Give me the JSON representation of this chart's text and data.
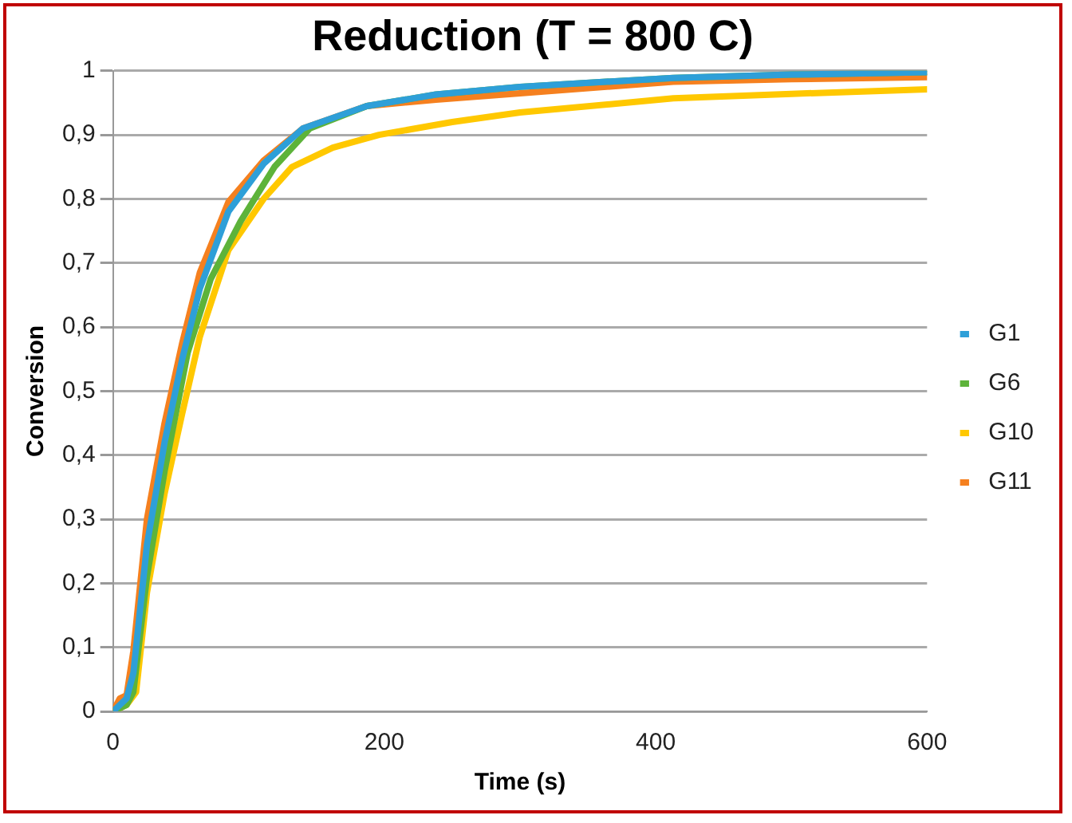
{
  "chart_data": {
    "type": "line",
    "title": "Reduction (T = 800 C)",
    "xlabel": "Time (s)",
    "ylabel": "Conversion",
    "xlim": [
      0,
      600
    ],
    "xticks": [
      0,
      200,
      400,
      600
    ],
    "ylim": [
      0,
      1
    ],
    "yticks": [
      0,
      {
        "value": 0.1,
        "label": "0,1"
      },
      {
        "value": 0.2,
        "label": "0,2"
      },
      {
        "value": 0.3,
        "label": "0,3"
      },
      {
        "value": 0.4,
        "label": "0,4"
      },
      {
        "value": 0.5,
        "label": "0,5"
      },
      {
        "value": 0.6,
        "label": "0,6"
      },
      {
        "value": 0.7,
        "label": "0,7"
      },
      {
        "value": 0.8,
        "label": "0,8"
      },
      {
        "value": 0.9,
        "label": "0,9"
      },
      1
    ],
    "grid": "y",
    "legend": "right",
    "marker": "none",
    "line_style": "solid",
    "series": [
      {
        "name": "G1",
        "color": "#2e9fd8",
        "x": [
          0,
          10,
          15,
          25,
          38,
          51,
          64,
          85,
          111,
          140,
          187,
          238,
          300,
          413,
          500,
          600
        ],
        "values": [
          0,
          0.02,
          0.06,
          0.26,
          0.42,
          0.55,
          0.66,
          0.78,
          0.855,
          0.91,
          0.945,
          0.963,
          0.975,
          0.989,
          0.994,
          0.998
        ]
      },
      {
        "name": "G6",
        "color": "#5db33a",
        "x": [
          0,
          10,
          15,
          25,
          38,
          55,
          72,
          94,
          119,
          145,
          187,
          238,
          300,
          413,
          500,
          600
        ],
        "values": [
          0,
          0.01,
          0.03,
          0.21,
          0.375,
          0.56,
          0.675,
          0.765,
          0.85,
          0.91,
          0.945,
          0.963,
          0.975,
          0.989,
          0.994,
          0.998
        ]
      },
      {
        "name": "G10",
        "color": "#ffc800",
        "x": [
          0,
          10,
          17,
          25,
          38,
          51,
          64,
          85,
          111,
          132,
          162,
          196,
          250,
          300,
          413,
          500,
          600
        ],
        "values": [
          0,
          0.01,
          0.03,
          0.185,
          0.34,
          0.465,
          0.585,
          0.72,
          0.8,
          0.85,
          0.88,
          0.9,
          0.92,
          0.935,
          0.957,
          0.964,
          0.971
        ]
      },
      {
        "name": "G11",
        "color": "#f5801f",
        "x": [
          0,
          5,
          10,
          15,
          25,
          38,
          51,
          64,
          85,
          111,
          140,
          187,
          238,
          300,
          413,
          500,
          600
        ],
        "values": [
          0,
          0.02,
          0.025,
          0.094,
          0.3,
          0.45,
          0.575,
          0.685,
          0.795,
          0.86,
          0.91,
          0.945,
          0.955,
          0.965,
          0.983,
          0.987,
          0.99
        ]
      }
    ]
  }
}
